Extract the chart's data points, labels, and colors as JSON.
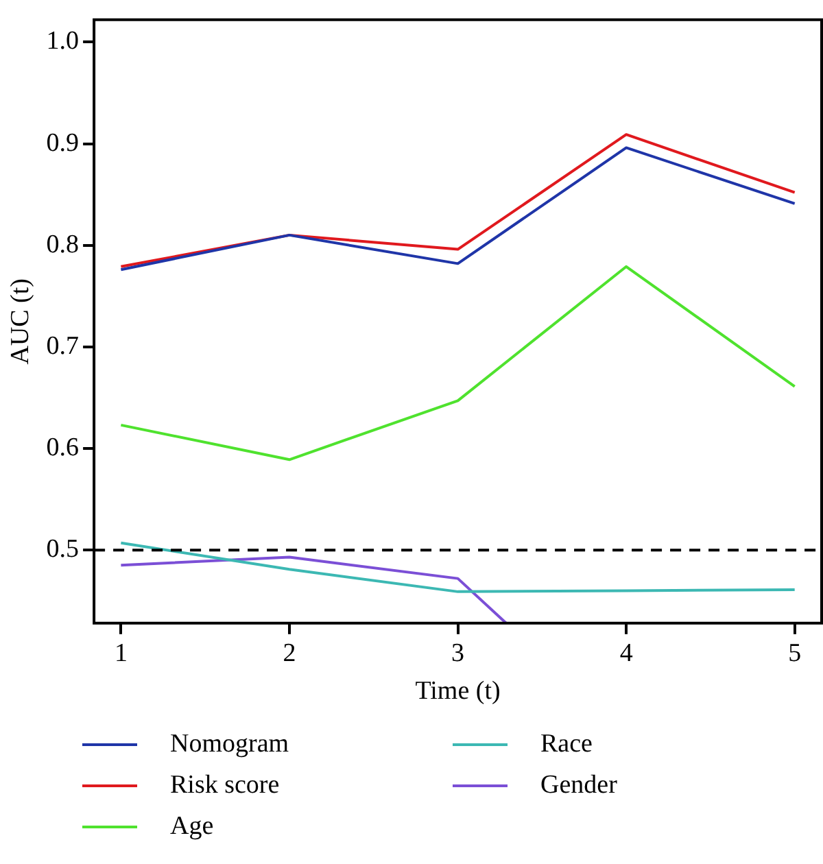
{
  "chart_data": {
    "type": "line",
    "xlabel": "Time (t)",
    "ylabel": "AUC (t)",
    "xlim": [
      0.84,
      5.16
    ],
    "xticks": [
      1,
      2,
      3,
      4,
      5
    ],
    "ylim": [
      0.428,
      1.022
    ],
    "yticks": [
      0.5,
      0.6,
      0.7,
      0.8,
      0.9,
      {
        "value": 1,
        "label": "1.0"
      }
    ],
    "grid": false,
    "legend": "bottom",
    "marker": "none",
    "line_style": "solid",
    "x": [
      1,
      2,
      3,
      4,
      5
    ],
    "series": [
      {
        "name": "Nomogram",
        "color": "#1f35a8",
        "values": [
          0.776,
          0.81,
          0.782,
          0.896,
          0.841
        ]
      },
      {
        "name": "Risk score",
        "color": "#e0191e",
        "values": [
          0.779,
          0.81,
          0.796,
          0.909,
          0.852
        ]
      },
      {
        "name": "Age",
        "color": "#4fe22e",
        "values": [
          0.623,
          0.589,
          0.647,
          0.779,
          0.661
        ]
      },
      {
        "name": "Race",
        "color": "#3cb8b3",
        "values": [
          0.507,
          0.481,
          0.459,
          0.46,
          0.461
        ]
      },
      {
        "name": "Gender",
        "color": "#7b4fd6",
        "x": [
          1,
          2,
          3,
          3.287
        ],
        "values": [
          0.485,
          0.493,
          0.472,
          0.428
        ]
      }
    ],
    "ref_lines": [
      {
        "axis": "y",
        "value": 0.5,
        "color": "#000000",
        "line_style": "dashed"
      }
    ]
  }
}
